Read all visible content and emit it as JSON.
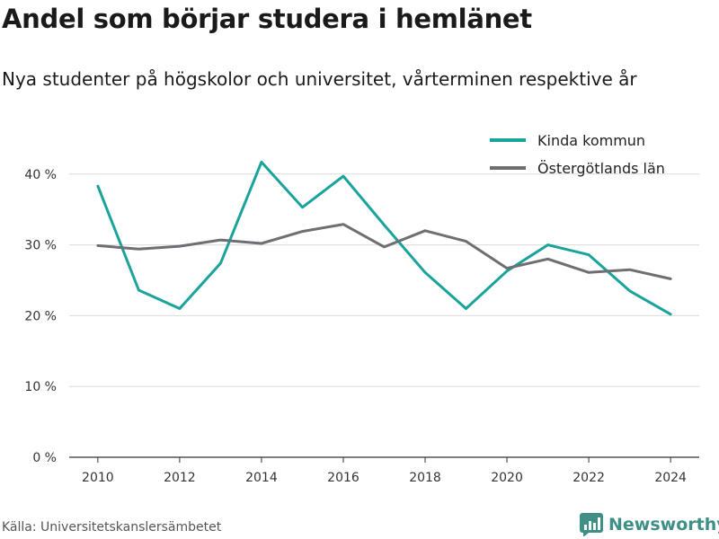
{
  "title": "Andel som börjar studera i hemlänet",
  "subtitle": "Nya studenter på högskolor och universitet, vårterminen respektive år",
  "source": "Källa: Universitetskanslersämbetet",
  "brand": {
    "name": "Newsworthy",
    "icon": "newsworthy-logo-icon",
    "color": "#3e8f86"
  },
  "chart_data": {
    "type": "line",
    "x": [
      2010,
      2011,
      2012,
      2013,
      2014,
      2015,
      2016,
      2017,
      2018,
      2019,
      2020,
      2021,
      2022,
      2023,
      2024
    ],
    "series": [
      {
        "name": "Kinda kommun",
        "color": "#1aa39a",
        "values": [
          38.3,
          23.6,
          21.0,
          27.4,
          41.7,
          35.3,
          39.7,
          32.8,
          26.1,
          21.0,
          26.3,
          30.0,
          28.6,
          23.5,
          20.2
        ]
      },
      {
        "name": "Östergötlands län",
        "color": "#6e6e73",
        "values": [
          29.9,
          29.4,
          29.8,
          30.7,
          30.2,
          31.9,
          32.9,
          29.7,
          32.0,
          30.5,
          26.7,
          28.0,
          26.1,
          26.5,
          25.2
        ]
      }
    ],
    "x_ticks": [
      2010,
      2012,
      2014,
      2016,
      2018,
      2020,
      2022,
      2024
    ],
    "y_ticks": [
      0,
      10,
      20,
      30,
      40
    ],
    "y_tick_labels": [
      "0 %",
      "10 %",
      "20 %",
      "30 %",
      "40 %"
    ],
    "xlim": [
      2009.3,
      2024.7
    ],
    "ylim": [
      0,
      42
    ],
    "grid": "horizontal",
    "legend": "top-right"
  }
}
